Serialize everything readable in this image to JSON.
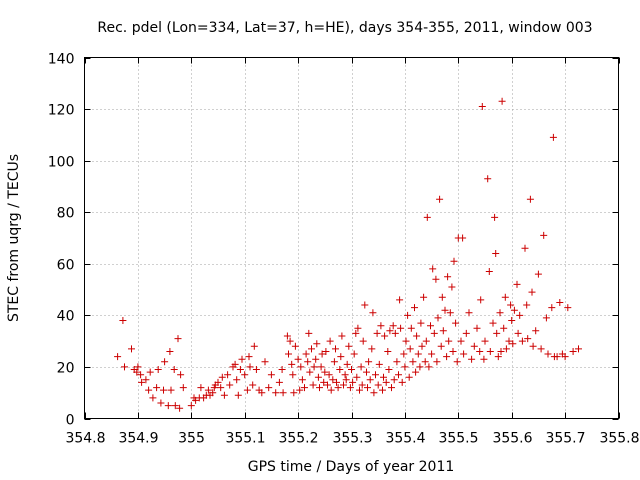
{
  "chart_data": {
    "type": "scatter",
    "title": "Rec. pdel (Lon=334, Lat=37, h=HE), days 354-355, 2011, window 003",
    "xlabel": "GPS time / Days of year 2011",
    "ylabel": "STEC from uqrg / TECUs",
    "xlim": [
      354.8,
      355.8
    ],
    "ylim": [
      0,
      140
    ],
    "xticks": [
      "354.8",
      "354.9",
      "355",
      "355.1",
      "355.2",
      "355.3",
      "355.4",
      "355.5",
      "355.6",
      "355.7",
      "355.8"
    ],
    "yticks": [
      "0",
      "20",
      "40",
      "60",
      "80",
      "100",
      "120",
      "140"
    ],
    "grid": true,
    "marker": "+",
    "color": "#cc0000",
    "series": [
      {
        "name": "STEC",
        "points": [
          [
            354.862,
            24
          ],
          [
            354.872,
            38
          ],
          [
            354.875,
            20
          ],
          [
            354.888,
            27
          ],
          [
            354.893,
            19
          ],
          [
            354.898,
            18
          ],
          [
            354.9,
            20
          ],
          [
            354.905,
            17
          ],
          [
            354.907,
            14
          ],
          [
            354.915,
            15
          ],
          [
            354.92,
            11
          ],
          [
            354.923,
            18
          ],
          [
            354.928,
            8
          ],
          [
            354.935,
            12
          ],
          [
            354.938,
            19
          ],
          [
            354.943,
            6
          ],
          [
            354.948,
            11
          ],
          [
            354.95,
            22
          ],
          [
            354.957,
            5
          ],
          [
            354.96,
            26
          ],
          [
            354.962,
            11
          ],
          [
            354.968,
            19
          ],
          [
            354.97,
            5
          ],
          [
            354.975,
            31
          ],
          [
            354.978,
            4
          ],
          [
            354.98,
            17
          ],
          [
            354.985,
            12
          ],
          [
            355.0,
            5
          ],
          [
            355.005,
            8
          ],
          [
            355.008,
            7
          ],
          [
            355.015,
            8
          ],
          [
            355.018,
            12
          ],
          [
            355.023,
            8
          ],
          [
            355.028,
            9
          ],
          [
            355.032,
            11
          ],
          [
            355.035,
            9
          ],
          [
            355.04,
            10
          ],
          [
            355.043,
            12
          ],
          [
            355.045,
            13
          ],
          [
            355.05,
            14
          ],
          [
            355.055,
            12
          ],
          [
            355.058,
            16
          ],
          [
            355.062,
            9
          ],
          [
            355.068,
            17
          ],
          [
            355.072,
            13
          ],
          [
            355.078,
            20
          ],
          [
            355.082,
            21
          ],
          [
            355.085,
            15
          ],
          [
            355.088,
            9
          ],
          [
            355.092,
            19
          ],
          [
            355.095,
            23
          ],
          [
            355.1,
            17
          ],
          [
            355.105,
            11
          ],
          [
            355.108,
            24
          ],
          [
            355.11,
            20
          ],
          [
            355.115,
            13
          ],
          [
            355.118,
            28
          ],
          [
            355.122,
            19
          ],
          [
            355.127,
            11
          ],
          [
            355.132,
            10
          ],
          [
            355.138,
            22
          ],
          [
            355.145,
            12
          ],
          [
            355.15,
            17
          ],
          [
            355.158,
            10
          ],
          [
            355.165,
            14
          ],
          [
            355.17,
            19
          ],
          [
            355.172,
            10
          ],
          [
            355.18,
            32
          ],
          [
            355.182,
            25
          ],
          [
            355.185,
            30
          ],
          [
            355.188,
            21
          ],
          [
            355.19,
            17
          ],
          [
            355.192,
            10
          ],
          [
            355.195,
            28
          ],
          [
            355.2,
            23
          ],
          [
            355.203,
            11
          ],
          [
            355.205,
            20
          ],
          [
            355.208,
            15
          ],
          [
            355.212,
            12
          ],
          [
            355.215,
            25
          ],
          [
            355.218,
            22
          ],
          [
            355.22,
            33
          ],
          [
            355.222,
            18
          ],
          [
            355.225,
            27
          ],
          [
            355.228,
            13
          ],
          [
            355.23,
            20
          ],
          [
            355.233,
            23
          ],
          [
            355.235,
            29
          ],
          [
            355.238,
            16
          ],
          [
            355.24,
            12
          ],
          [
            355.243,
            20
          ],
          [
            355.245,
            25
          ],
          [
            355.248,
            14
          ],
          [
            355.25,
            18
          ],
          [
            355.252,
            26
          ],
          [
            355.255,
            13
          ],
          [
            355.258,
            17
          ],
          [
            355.26,
            30
          ],
          [
            355.262,
            11
          ],
          [
            355.265,
            15
          ],
          [
            355.268,
            22
          ],
          [
            355.27,
            27
          ],
          [
            355.272,
            14
          ],
          [
            355.275,
            12
          ],
          [
            355.278,
            19
          ],
          [
            355.28,
            24
          ],
          [
            355.282,
            32
          ],
          [
            355.285,
            13
          ],
          [
            355.288,
            17
          ],
          [
            355.29,
            15
          ],
          [
            355.292,
            21
          ],
          [
            355.295,
            28
          ],
          [
            355.298,
            12
          ],
          [
            355.3,
            19
          ],
          [
            355.302,
            14
          ],
          [
            355.305,
            25
          ],
          [
            355.308,
            33
          ],
          [
            355.31,
            16
          ],
          [
            355.312,
            35
          ],
          [
            355.315,
            11
          ],
          [
            355.318,
            20
          ],
          [
            355.32,
            13
          ],
          [
            355.322,
            30
          ],
          [
            355.325,
            44
          ],
          [
            355.328,
            18
          ],
          [
            355.33,
            12
          ],
          [
            355.332,
            22
          ],
          [
            355.335,
            15
          ],
          [
            355.338,
            27
          ],
          [
            355.34,
            41
          ],
          [
            355.342,
            10
          ],
          [
            355.345,
            17
          ],
          [
            355.348,
            33
          ],
          [
            355.35,
            13
          ],
          [
            355.352,
            21
          ],
          [
            355.355,
            36
          ],
          [
            355.358,
            11
          ],
          [
            355.36,
            16
          ],
          [
            355.362,
            32
          ],
          [
            355.365,
            14
          ],
          [
            355.368,
            26
          ],
          [
            355.37,
            19
          ],
          [
            355.372,
            34
          ],
          [
            355.375,
            12
          ],
          [
            355.378,
            36
          ],
          [
            355.38,
            15
          ],
          [
            355.382,
            33
          ],
          [
            355.385,
            22
          ],
          [
            355.388,
            17
          ],
          [
            355.39,
            46
          ],
          [
            355.392,
            35
          ],
          [
            355.395,
            14
          ],
          [
            355.398,
            25
          ],
          [
            355.4,
            20
          ],
          [
            355.402,
            30
          ],
          [
            355.405,
            40
          ],
          [
            355.408,
            16
          ],
          [
            355.41,
            27
          ],
          [
            355.412,
            35
          ],
          [
            355.415,
            22
          ],
          [
            355.418,
            43
          ],
          [
            355.42,
            18
          ],
          [
            355.422,
            32
          ],
          [
            355.425,
            25
          ],
          [
            355.428,
            20
          ],
          [
            355.43,
            37
          ],
          [
            355.432,
            28
          ],
          [
            355.435,
            47
          ],
          [
            355.438,
            22
          ],
          [
            355.44,
            30
          ],
          [
            355.442,
            78
          ],
          [
            355.445,
            20
          ],
          [
            355.448,
            36
          ],
          [
            355.45,
            25
          ],
          [
            355.452,
            58
          ],
          [
            355.455,
            33
          ],
          [
            355.458,
            54
          ],
          [
            355.46,
            22
          ],
          [
            355.462,
            39
          ],
          [
            355.465,
            85
          ],
          [
            355.468,
            28
          ],
          [
            355.47,
            47
          ],
          [
            355.472,
            34
          ],
          [
            355.475,
            42
          ],
          [
            355.478,
            24
          ],
          [
            355.48,
            55
          ],
          [
            355.482,
            30
          ],
          [
            355.485,
            41
          ],
          [
            355.488,
            51
          ],
          [
            355.49,
            26
          ],
          [
            355.492,
            61
          ],
          [
            355.495,
            37
          ],
          [
            355.498,
            22
          ],
          [
            355.5,
            70
          ],
          [
            355.505,
            30
          ],
          [
            355.508,
            70
          ],
          [
            355.51,
            25
          ],
          [
            355.515,
            33
          ],
          [
            355.52,
            41
          ],
          [
            355.525,
            23
          ],
          [
            355.53,
            28
          ],
          [
            355.535,
            35
          ],
          [
            355.54,
            26
          ],
          [
            355.542,
            46
          ],
          [
            355.545,
            121
          ],
          [
            355.548,
            23
          ],
          [
            355.55,
            30
          ],
          [
            355.555,
            93
          ],
          [
            355.558,
            57
          ],
          [
            355.56,
            26
          ],
          [
            355.565,
            37
          ],
          [
            355.568,
            78
          ],
          [
            355.57,
            64
          ],
          [
            355.572,
            33
          ],
          [
            355.575,
            24
          ],
          [
            355.578,
            41
          ],
          [
            355.58,
            26
          ],
          [
            355.582,
            123
          ],
          [
            355.585,
            35
          ],
          [
            355.588,
            47
          ],
          [
            355.59,
            27
          ],
          [
            355.595,
            30
          ],
          [
            355.598,
            44
          ],
          [
            355.6,
            38
          ],
          [
            355.602,
            29
          ],
          [
            355.605,
            42
          ],
          [
            355.61,
            52
          ],
          [
            355.612,
            33
          ],
          [
            355.615,
            40
          ],
          [
            355.62,
            30
          ],
          [
            355.625,
            66
          ],
          [
            355.628,
            44
          ],
          [
            355.63,
            31
          ],
          [
            355.635,
            85
          ],
          [
            355.638,
            49
          ],
          [
            355.64,
            28
          ],
          [
            355.645,
            34
          ],
          [
            355.65,
            56
          ],
          [
            355.655,
            27
          ],
          [
            355.66,
            71
          ],
          [
            355.665,
            39
          ],
          [
            355.668,
            25
          ],
          [
            355.675,
            43
          ],
          [
            355.678,
            109
          ],
          [
            355.68,
            24
          ],
          [
            355.685,
            24
          ],
          [
            355.69,
            45
          ],
          [
            355.695,
            25
          ],
          [
            355.7,
            24
          ],
          [
            355.705,
            43
          ],
          [
            355.715,
            26
          ],
          [
            355.725,
            27
          ]
        ]
      }
    ]
  }
}
